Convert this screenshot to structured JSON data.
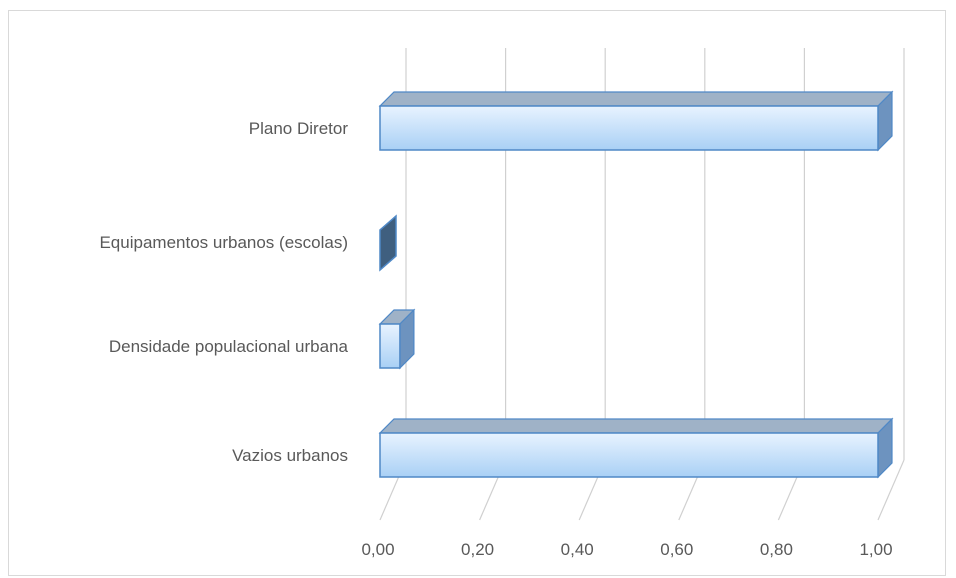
{
  "chart_data": {
    "type": "bar",
    "orientation": "horizontal",
    "style": "3d-clustered",
    "categories": [
      "Plano Diretor",
      "Equipamentos urbanos (escolas)",
      "Densidade populacional urbana",
      "Vazios urbanos"
    ],
    "values": [
      1.0,
      0.0,
      0.04,
      1.0
    ],
    "xlim": [
      0,
      1
    ],
    "xticks": [
      "0,00",
      "0,20",
      "0,40",
      "0,60",
      "0,80",
      "1,00"
    ],
    "xtick_values": [
      0,
      0.2,
      0.4,
      0.6,
      0.8,
      1.0
    ],
    "grid": true,
    "legend": "none",
    "colors": {
      "bar_fill_light": "#e8f3ff",
      "bar_fill_dark": "#a9d0f5",
      "bar_stroke": "#4f88c6",
      "bar_top": "#9fb2c7",
      "bar_side": "#6d93bf",
      "zero_bar": "#3f5f7f",
      "gridline": "#d0d0d0",
      "label": "#595959"
    }
  }
}
